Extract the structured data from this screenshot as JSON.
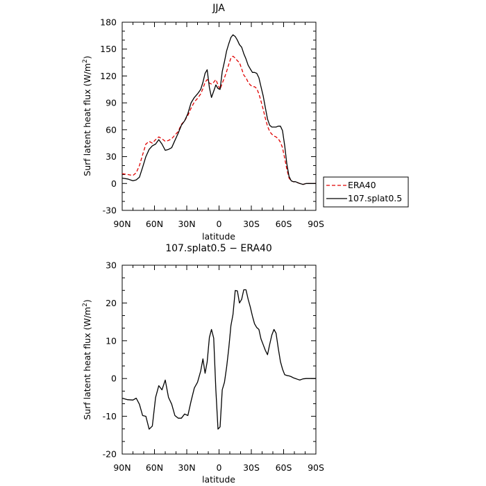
{
  "chart_data": [
    {
      "type": "line",
      "title": "JJA",
      "xlabel": "latitude",
      "ylabel": "Surf latent heat flux (W/m²)",
      "ylabel_main": "Surf latent heat flux (W/m",
      "ylabel_sup": "2",
      "ylabel_tail": ")",
      "xlim": [
        90,
        -90
      ],
      "ylim": [
        -30,
        180
      ],
      "yticks": [
        -30,
        0,
        30,
        60,
        90,
        120,
        150,
        180
      ],
      "xticks": [
        90,
        60,
        30,
        0,
        -30,
        -60,
        -90
      ],
      "xtick_labels": [
        "90N",
        "60N",
        "30N",
        "0",
        "30S",
        "60S",
        "90S"
      ],
      "legend": "outside-right",
      "series": [
        {
          "name": "ERA40",
          "color": "#e00000",
          "dash": "dashed",
          "x": [
            90,
            85,
            80,
            77,
            74,
            71,
            68,
            65,
            62,
            59,
            56,
            53,
            50,
            47,
            44,
            41,
            38,
            35,
            32,
            29,
            26,
            23,
            20,
            17,
            15,
            13,
            11,
            9,
            7,
            5,
            3,
            1,
            -1,
            -3,
            -5,
            -7,
            -9,
            -11,
            -13,
            -15,
            -17,
            -19,
            -21,
            -23,
            -25,
            -27,
            -29,
            -31,
            -33,
            -35,
            -37,
            -39,
            -41,
            -43,
            -45,
            -47,
            -49,
            -51,
            -53,
            -55,
            -57,
            -59,
            -61,
            -63,
            -65,
            -67,
            -69,
            -71,
            -73,
            -75,
            -78,
            -81,
            -84,
            -87,
            -90
          ],
          "y": [
            11,
            10,
            9,
            12,
            20,
            32,
            44,
            47,
            45,
            49,
            52,
            50,
            47,
            48,
            50,
            54,
            58,
            66,
            70,
            76,
            84,
            91,
            95,
            100,
            106,
            113,
            116,
            112,
            111,
            113,
            116,
            110,
            105,
            112,
            118,
            125,
            133,
            140,
            142,
            140,
            137,
            135,
            128,
            121,
            118,
            113,
            110,
            108,
            108,
            106,
            100,
            92,
            83,
            73,
            64,
            58,
            55,
            53,
            52,
            50,
            46,
            40,
            28,
            16,
            6,
            3,
            2,
            2,
            1,
            0,
            -1,
            0,
            0,
            0,
            0
          ]
        },
        {
          "name": "107.splat0.5",
          "color": "#000000",
          "dash": "solid",
          "x": [
            90,
            85,
            80,
            77,
            74,
            71,
            68,
            65,
            62,
            59,
            56,
            53,
            50,
            47,
            44,
            41,
            38,
            35,
            32,
            29,
            26,
            23,
            20,
            17,
            15,
            13,
            11,
            9,
            7,
            5,
            3,
            1,
            -1,
            -3,
            -5,
            -7,
            -9,
            -11,
            -13,
            -15,
            -17,
            -19,
            -21,
            -23,
            -25,
            -27,
            -29,
            -31,
            -33,
            -35,
            -37,
            -39,
            -41,
            -43,
            -45,
            -47,
            -49,
            -51,
            -53,
            -55,
            -57,
            -59,
            -61,
            -63,
            -65,
            -67,
            -69,
            -71,
            -73,
            -75,
            -78,
            -81,
            -84,
            -87,
            -90
          ],
          "y": [
            6,
            5,
            3,
            4,
            7,
            18,
            30,
            38,
            42,
            44,
            49,
            44,
            37,
            38,
            40,
            48,
            56,
            65,
            70,
            78,
            90,
            96,
            100,
            105,
            113,
            123,
            127,
            107,
            96,
            103,
            110,
            106,
            105,
            125,
            136,
            148,
            156,
            163,
            166,
            164,
            160,
            155,
            152,
            145,
            139,
            132,
            128,
            124,
            124,
            123,
            118,
            108,
            98,
            85,
            72,
            65,
            63,
            63,
            63,
            64,
            64,
            59,
            42,
            22,
            8,
            3,
            2,
            2,
            1,
            0,
            -1,
            0,
            0,
            0,
            0
          ]
        }
      ]
    },
    {
      "type": "line",
      "title": "107.splat0.5 − ERA40",
      "xlabel": "latitude",
      "ylabel": "Surf latent heat flux (W/m²)",
      "ylabel_main": "Surf latent heat flux (W/m",
      "ylabel_sup": "2",
      "ylabel_tail": ")",
      "xlim": [
        90,
        -90
      ],
      "ylim": [
        -20,
        30
      ],
      "yticks": [
        -20,
        -10,
        0,
        10,
        20,
        30
      ],
      "xticks": [
        90,
        60,
        30,
        0,
        -30,
        -60,
        -90
      ],
      "xtick_labels": [
        "90N",
        "60N",
        "30N",
        "0",
        "30S",
        "60S",
        "90S"
      ],
      "series": [
        {
          "color": "#000000",
          "dash": "solid",
          "x": [
            90,
            85,
            80,
            77,
            74,
            71,
            68,
            65,
            62,
            59,
            56,
            53,
            50,
            47,
            44,
            41,
            38,
            35,
            32,
            29,
            26,
            23,
            20,
            17,
            15,
            13,
            11,
            9,
            7,
            5,
            3,
            1,
            -1,
            -3,
            -5,
            -7,
            -9,
            -11,
            -13,
            -15,
            -17,
            -19,
            -21,
            -23,
            -25,
            -27,
            -29,
            -31,
            -33,
            -35,
            -37,
            -39,
            -41,
            -43,
            -45,
            -47,
            -49,
            -51,
            -53,
            -55,
            -57,
            -59,
            -61,
            -63,
            -65,
            -67,
            -69,
            -71,
            -73,
            -75,
            -78,
            -81,
            -84,
            -87,
            -90
          ],
          "y": [
            -5.2,
            -5.6,
            -5.7,
            -5.2,
            -6.8,
            -9.8,
            -10.0,
            -13.4,
            -12.6,
            -5.0,
            -1.9,
            -3.0,
            -0.4,
            -5.0,
            -6.8,
            -9.8,
            -10.5,
            -10.5,
            -9.4,
            -9.8,
            -6.0,
            -2.5,
            -1.0,
            2.0,
            5.2,
            1.4,
            4.4,
            10.9,
            13.0,
            10.7,
            -3.0,
            -13.4,
            -12.8,
            -3.0,
            -1.0,
            3.0,
            8.0,
            14.0,
            17.0,
            23.3,
            23.2,
            20.0,
            21.0,
            23.5,
            23.5,
            21.0,
            19.0,
            16.5,
            14.5,
            13.5,
            13.0,
            10.5,
            9.0,
            7.5,
            6.3,
            9.0,
            11.5,
            13.0,
            12.0,
            8.0,
            4.5,
            2.5,
            1.0,
            0.8,
            0.7,
            0.5,
            0.2,
            0.0,
            -0.2,
            -0.4,
            -0.1,
            0.0,
            0.0,
            0.0,
            0.0
          ]
        }
      ]
    }
  ]
}
